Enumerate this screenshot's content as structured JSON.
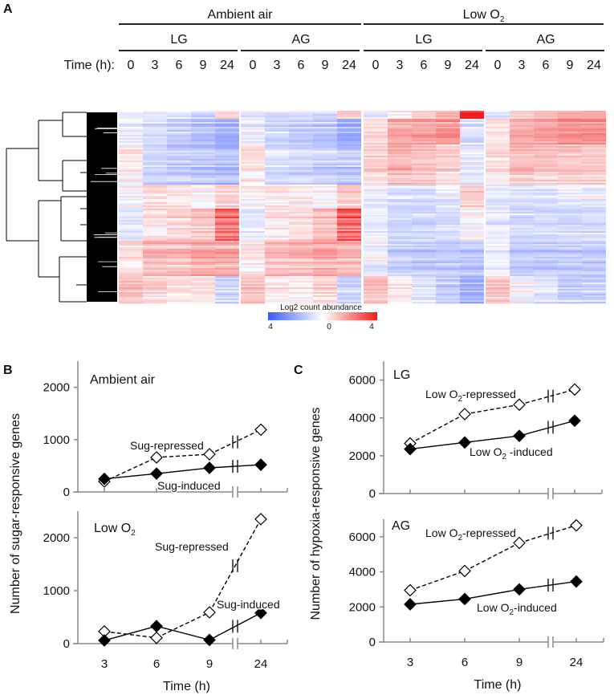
{
  "panel_labels": {
    "a": "A",
    "b": "B",
    "c": "C"
  },
  "chart_data": [
    {
      "type": "heatmap",
      "panel": "A",
      "conditions": [
        {
          "label_pre": "Ambient air",
          "label_sub": "",
          "groups": [
            "LG",
            "AG"
          ]
        },
        {
          "label_pre": "Low O",
          "label_sub": "2",
          "groups": [
            "LG",
            "AG"
          ]
        }
      ],
      "time_label": "Time (h):",
      "time_points": [
        "0",
        "3",
        "6",
        "9",
        "24"
      ],
      "colorbar": {
        "title": "Log2 count abundance",
        "ticks": [
          "4",
          "0",
          "4"
        ],
        "range": [
          -4,
          4
        ],
        "low_color": "#3c5aff",
        "mid_color": "#ffffff",
        "high_color": "#f01e1e"
      },
      "row_clusters": [
        {
          "rows": 5,
          "values": [
            -0.3,
            -0.3,
            -0.3,
            -0.5,
            0.3,
            -0.3,
            -0.5,
            -0.3,
            -0.5,
            0.3,
            -0.3,
            0,
            0.5,
            0.8,
            3.6,
            -0.3,
            0.3,
            0.5,
            0.8,
            1.0
          ]
        },
        {
          "rows": 16,
          "values": [
            -0.2,
            -0.5,
            -0.8,
            -1.0,
            -1.5,
            -0.2,
            -0.6,
            -0.8,
            -1.0,
            -1.5,
            0.3,
            1.0,
            1.2,
            1.4,
            -0.4,
            0.2,
            1.0,
            1.2,
            1.5,
            1.5
          ]
        },
        {
          "rows": 25,
          "values": [
            0.2,
            -0.6,
            -0.8,
            -1.0,
            -1.2,
            0.3,
            -0.5,
            -0.6,
            -0.8,
            -1.0,
            0.5,
            1.0,
            0.8,
            0.5,
            -0.3,
            0.4,
            0.8,
            0.7,
            0.7,
            0.6
          ]
        },
        {
          "rows": 15,
          "values": [
            0.0,
            0.3,
            0.2,
            0.0,
            0.5,
            0.0,
            0.2,
            0.2,
            0.0,
            0.6,
            -0.2,
            -0.5,
            -0.5,
            -0.3,
            0.5,
            -0.2,
            -0.4,
            -0.4,
            -0.3,
            -0.3
          ]
        },
        {
          "rows": 20,
          "values": [
            -0.3,
            0.3,
            0.5,
            0.8,
            2.5,
            -0.3,
            0.2,
            0.4,
            0.8,
            2.8,
            -0.3,
            -0.6,
            -0.6,
            -0.5,
            0.0,
            -0.3,
            -0.6,
            -0.6,
            -0.6,
            -0.6
          ]
        },
        {
          "rows": 22,
          "values": [
            0.2,
            1.0,
            1.0,
            1.2,
            1.3,
            0.2,
            0.8,
            1.0,
            1.2,
            1.0,
            -0.2,
            -0.9,
            -1.0,
            -1.0,
            -1.1,
            -0.2,
            -1.0,
            -1.0,
            -1.0,
            -1.0
          ]
        },
        {
          "rows": 17,
          "values": [
            0.8,
            0.5,
            0.3,
            0.3,
            -0.6,
            0.8,
            0.2,
            0.2,
            0.5,
            -0.6,
            0.8,
            0.2,
            -0.3,
            -0.8,
            -1.5,
            0.8,
            0.0,
            -0.3,
            -0.8,
            -0.8
          ]
        }
      ]
    },
    {
      "type": "line",
      "panel": "B",
      "title_pre": "Ambient air",
      "title_sub": "",
      "x": [
        "3",
        "6",
        "9",
        "24"
      ],
      "ylim": [
        0,
        2500
      ],
      "yticks": [
        "0",
        "1000",
        "2000"
      ],
      "series": [
        {
          "name": "Sug-repressed",
          "label_pre": "Sug-repressed",
          "label_sub": "",
          "label_post": "",
          "style": "dashed-open",
          "values": [
            200,
            660,
            720,
            1190
          ]
        },
        {
          "name": "Sug-induced",
          "label_pre": "Sug-induced",
          "label_sub": "",
          "label_post": "",
          "style": "solid-filled",
          "values": [
            250,
            350,
            460,
            520
          ]
        }
      ]
    },
    {
      "type": "line",
      "panel": "B",
      "title_pre": "Low O",
      "title_sub": "2",
      "x": [
        "3",
        "6",
        "9",
        "24"
      ],
      "ylim": [
        0,
        2500
      ],
      "yticks": [
        "0",
        "1000",
        "2000"
      ],
      "xlabel": "Time (h)",
      "series": [
        {
          "name": "Sug-repressed",
          "label_pre": "Sug-repressed",
          "label_sub": "",
          "label_post": "",
          "style": "dashed-open",
          "values": [
            230,
            110,
            590,
            2350
          ]
        },
        {
          "name": "Sug-induced",
          "label_pre": "Sug-induced",
          "label_sub": "",
          "label_post": "",
          "style": "solid-filled",
          "values": [
            60,
            330,
            70,
            580
          ]
        }
      ]
    },
    {
      "type": "line",
      "panel": "C",
      "title_pre": "LG",
      "title_sub": "",
      "x": [
        "3",
        "6",
        "9",
        "24"
      ],
      "ylim": [
        0,
        7000
      ],
      "yticks": [
        "0",
        "2000",
        "4000",
        "6000"
      ],
      "series": [
        {
          "name": "Low O2-repressed",
          "label_pre": "Low O",
          "label_sub": "2",
          "label_post": "-repressed",
          "style": "dashed-open",
          "values": [
            2650,
            4200,
            4700,
            5500
          ]
        },
        {
          "name": "Low O2-induced",
          "label_pre": "Low O",
          "label_sub": "2",
          "label_post": " -induced",
          "style": "solid-filled",
          "values": [
            2350,
            2700,
            3050,
            3850
          ]
        }
      ]
    },
    {
      "type": "line",
      "panel": "C",
      "title_pre": "AG",
      "title_sub": "",
      "x": [
        "3",
        "6",
        "9",
        "24"
      ],
      "ylim": [
        0,
        7000
      ],
      "yticks": [
        "0",
        "2000",
        "4000",
        "6000"
      ],
      "xlabel": "Time (h)",
      "series": [
        {
          "name": "Low O2-repressed",
          "label_pre": "Low O",
          "label_sub": "2",
          "label_post": "-repressed",
          "style": "dashed-open",
          "values": [
            2950,
            4050,
            5650,
            6650
          ]
        },
        {
          "name": "Low O2-induced",
          "label_pre": "Low O",
          "label_sub": "2",
          "label_post": "-induced",
          "style": "solid-filled",
          "values": [
            2150,
            2450,
            3000,
            3450
          ]
        }
      ]
    }
  ],
  "ylabels": {
    "b": "Number of sugar-responsive genes",
    "c": "Number of hypoxia-responsive genes"
  }
}
